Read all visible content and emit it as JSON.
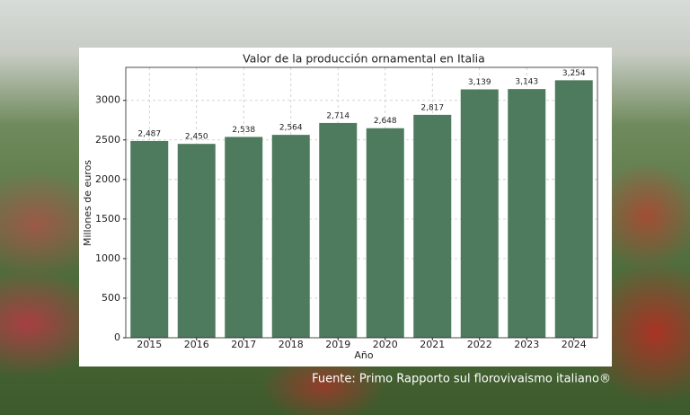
{
  "chart_data": {
    "type": "bar",
    "title": "Valor de la producción ornamental en Italia",
    "x_label": "Año",
    "y_label": "Millones de euros",
    "categories": [
      "2015",
      "2016",
      "2017",
      "2018",
      "2019",
      "2020",
      "2021",
      "2022",
      "2023",
      "2024"
    ],
    "values": [
      2487,
      2450,
      2538,
      2564,
      2714,
      2648,
      2817,
      3139,
      3143,
      3254
    ],
    "value_labels": [
      "2,487",
      "2,450",
      "2,538",
      "2,564",
      "2,714",
      "2,648",
      "2,817",
      "3,139",
      "3,143",
      "3,254"
    ],
    "color": "#4e7a5e",
    "ylim": [
      0,
      3417
    ],
    "yticks": [
      0,
      500,
      1000,
      1500,
      2000,
      2500,
      3000
    ],
    "grid": true,
    "source": "Fuente: Primo Rapporto sul florovivaismo italiano®"
  }
}
